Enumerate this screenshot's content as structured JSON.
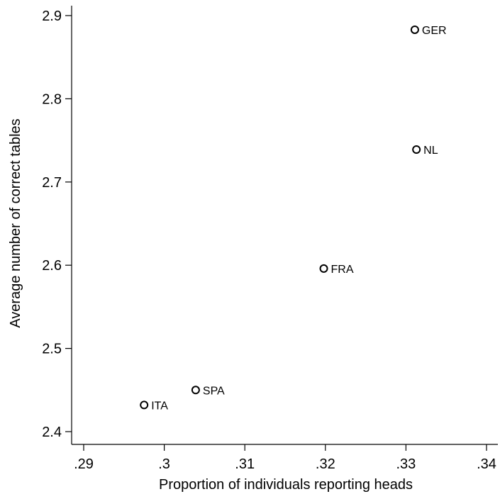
{
  "chart_data": {
    "type": "scatter",
    "xlabel": "Proportion of individuals reporting heads",
    "ylabel": "Average number of correct tables",
    "xlim": [
      0.29,
      0.34
    ],
    "ylim": [
      2.4,
      2.9
    ],
    "x_ticks": [
      {
        "value": 0.29,
        "label": ".29"
      },
      {
        "value": 0.3,
        "label": ".3"
      },
      {
        "value": 0.31,
        "label": ".31"
      },
      {
        "value": 0.32,
        "label": ".32"
      },
      {
        "value": 0.33,
        "label": ".33"
      },
      {
        "value": 0.34,
        "label": ".34"
      }
    ],
    "y_ticks": [
      {
        "value": 2.4,
        "label": "2.4"
      },
      {
        "value": 2.5,
        "label": "2.5"
      },
      {
        "value": 2.6,
        "label": "2.6"
      },
      {
        "value": 2.7,
        "label": "2.7"
      },
      {
        "value": 2.8,
        "label": "2.8"
      },
      {
        "value": 2.9,
        "label": "2.9"
      }
    ],
    "grid": false,
    "legend": "none",
    "points": [
      {
        "label": "GER",
        "x": 0.3311,
        "y": 2.883
      },
      {
        "label": "NL",
        "x": 0.3313,
        "y": 2.739
      },
      {
        "label": "FRA",
        "x": 0.3198,
        "y": 2.596
      },
      {
        "label": "SPA",
        "x": 0.3039,
        "y": 2.45
      },
      {
        "label": "ITA",
        "x": 0.2975,
        "y": 2.432
      }
    ],
    "colors": {
      "marker": "#000000",
      "axis": "#000000",
      "background": "#ffffff"
    }
  }
}
